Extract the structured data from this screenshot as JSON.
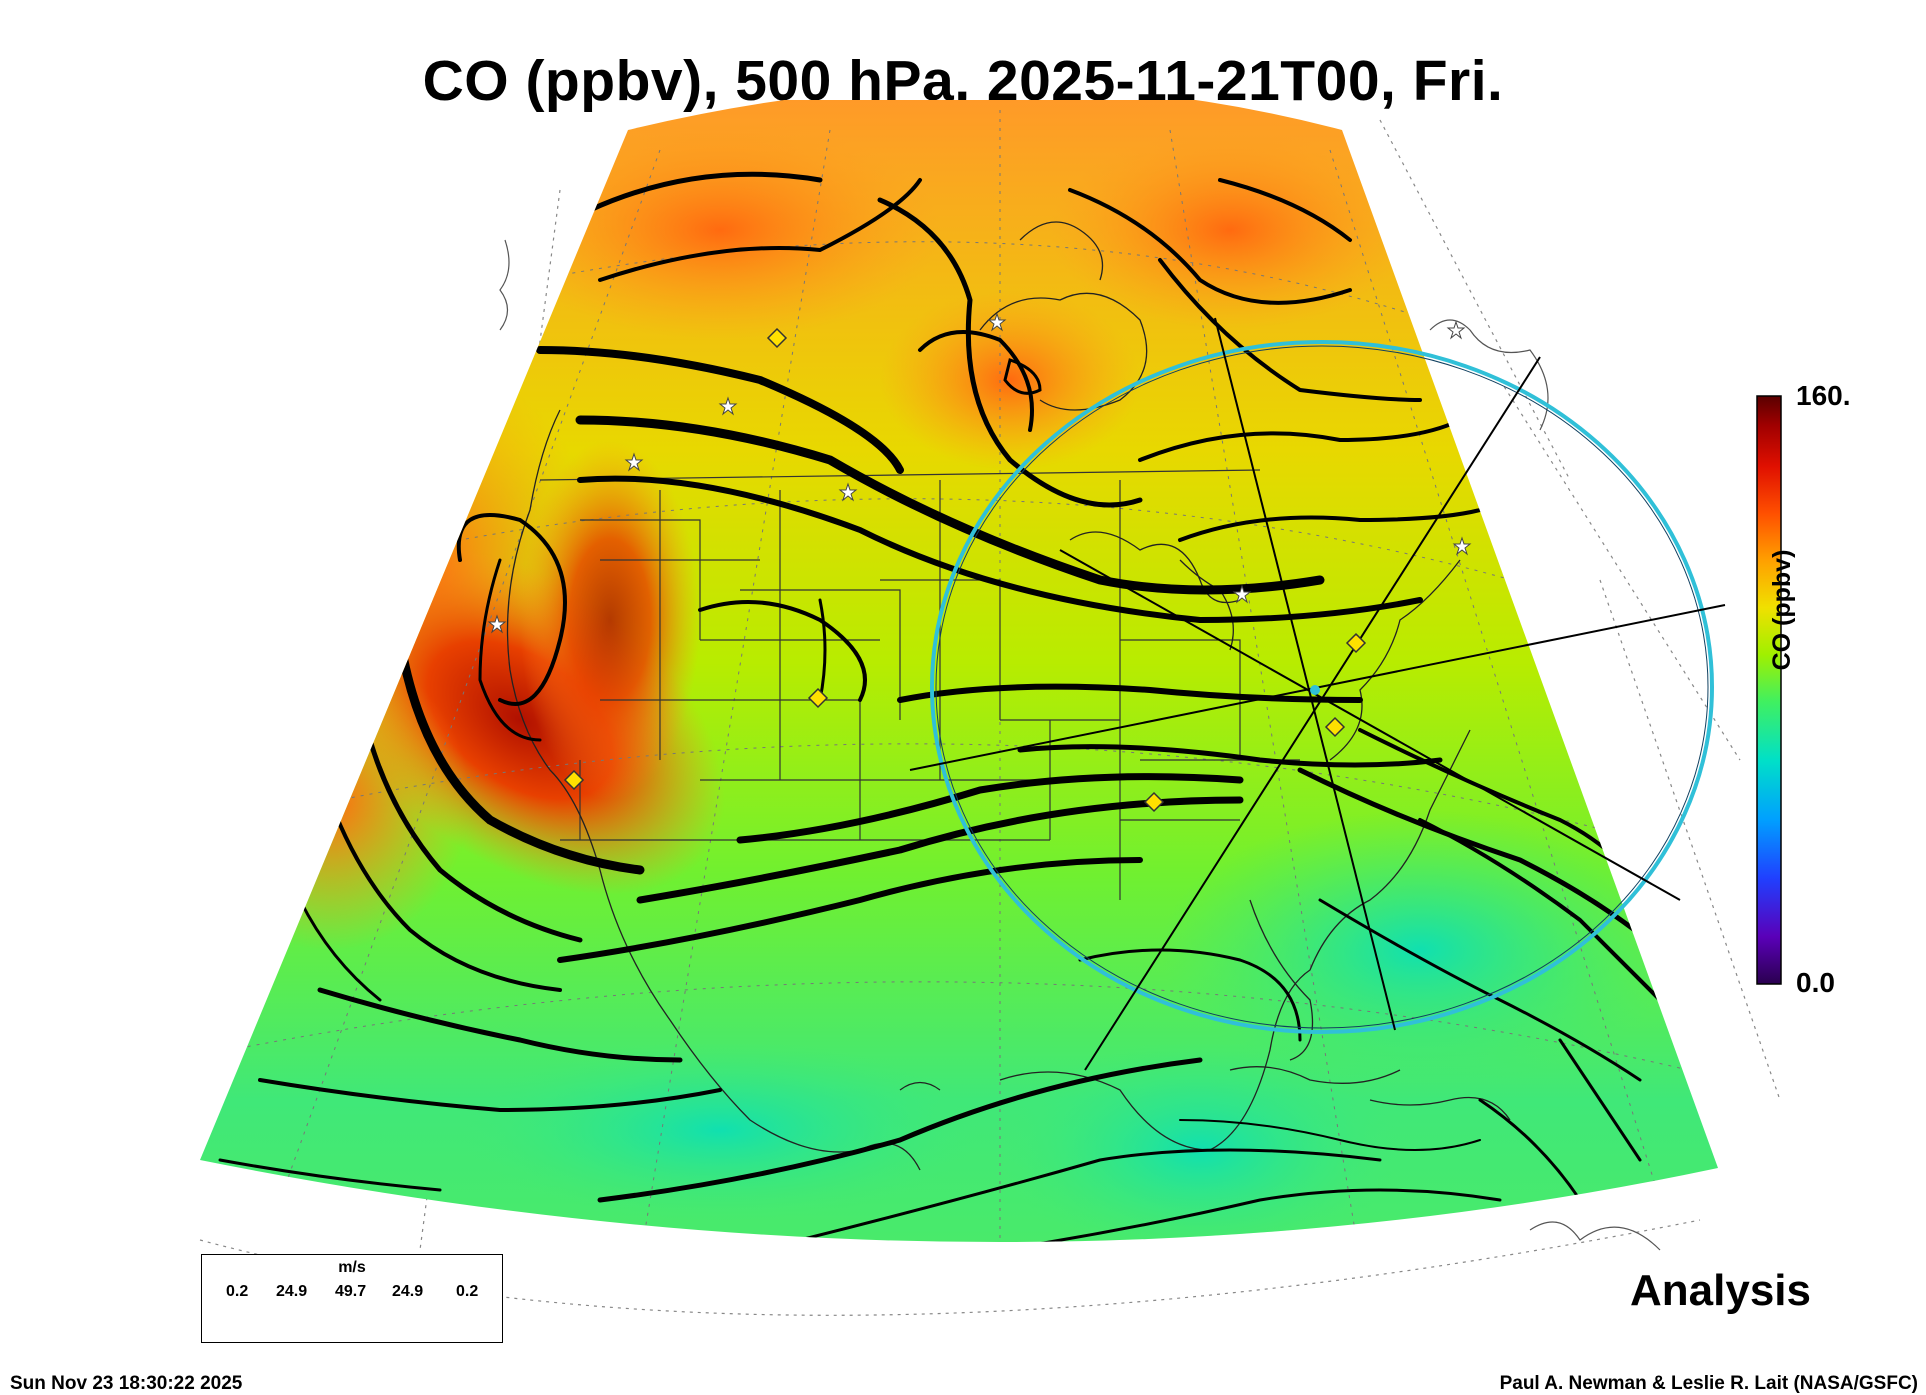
{
  "title": "CO (ppbv), 500 hPa, 2025-11-21T00, Fri.",
  "colorbar": {
    "label": "CO (ppbv)",
    "max_label": "160.",
    "min_label": "0.0",
    "stops": [
      "#2a004f",
      "#5a00b8",
      "#2040ff",
      "#00a0ff",
      "#00e0c8",
      "#40f060",
      "#a0f000",
      "#f0e000",
      "#ffa000",
      "#ff5000",
      "#e01000",
      "#a00000",
      "#5a0000"
    ]
  },
  "wind_legend": {
    "unit": "m/s",
    "values": [
      "0.2",
      "24.9",
      "49.7",
      "24.9",
      "0.2"
    ]
  },
  "analysis_label": "Analysis",
  "timestamp": "Sun Nov 23 18:30:22 2025",
  "credits": "Paul A. Newman & Leslie R. Lait (NASA/GSFC)",
  "map": {
    "fill_colors": {
      "north": "#ff9420",
      "mid": "#c8e800",
      "south": "#40e878",
      "plume": "#c01800"
    },
    "highlight_ring_color": "#30c0d8",
    "station_markers": [
      "white-star",
      "yellow-diamond"
    ]
  }
}
